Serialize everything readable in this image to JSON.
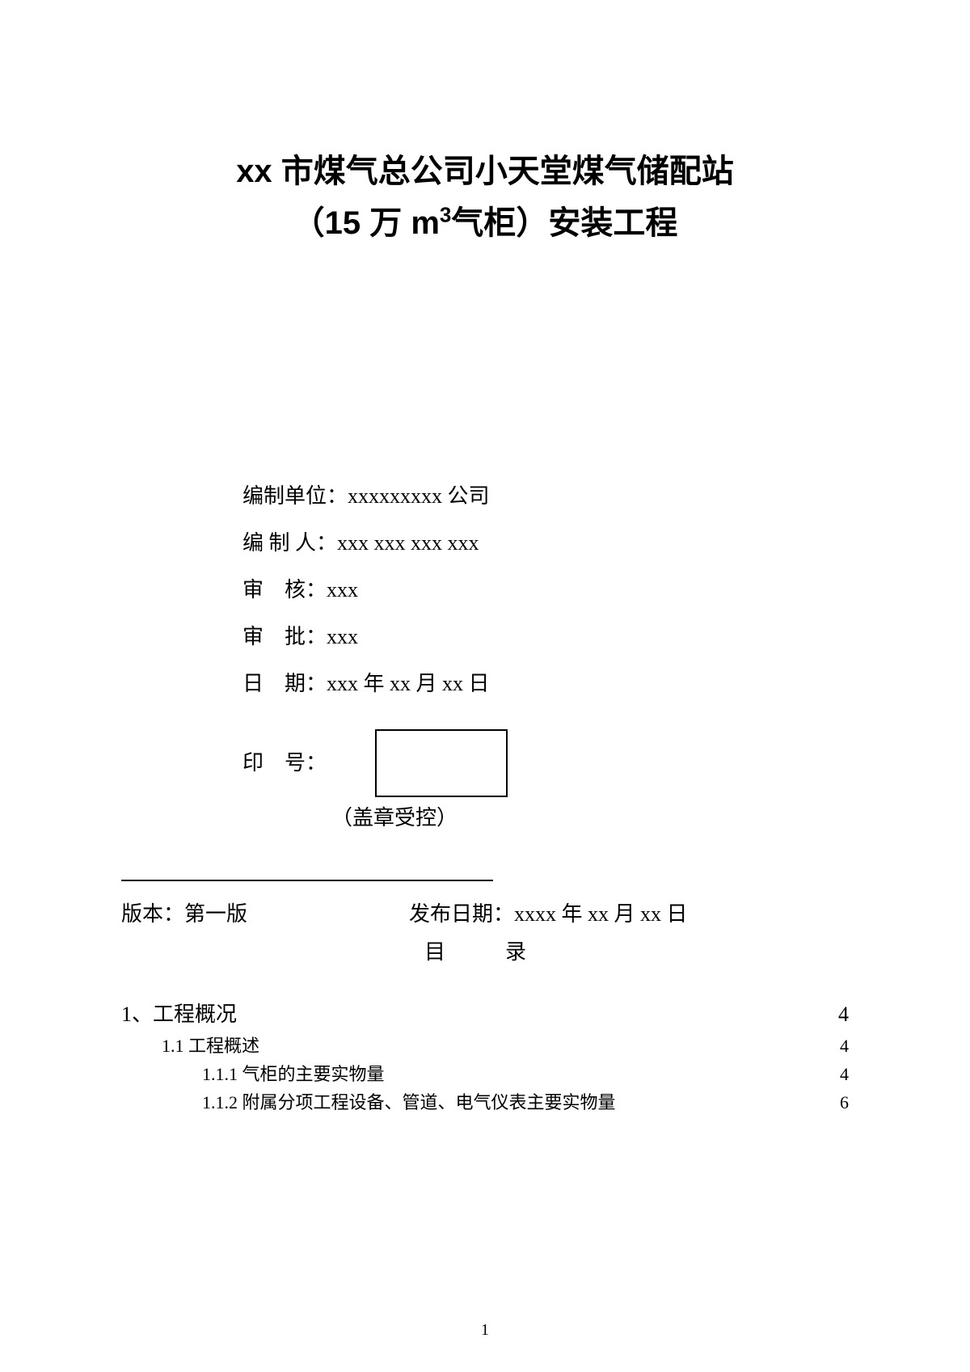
{
  "title": {
    "line1_pre": "xx 市煤气总公司小天堂煤气储配站",
    "line2_pre": "（15 万 m",
    "line2_sup": "3",
    "line2_post": "气柜）安装工程"
  },
  "info": {
    "org_label": "编制单位：",
    "org_value": "xxxxxxxxx 公司",
    "author_label": "编 制 人：",
    "author_value": "xxx xxx xxx xxx",
    "review_label": "审　核：",
    "review_value": "xxx",
    "approve_label": "审　批：",
    "approve_value": "xxx",
    "date_label": "日　期：",
    "date_value": "xxx 年 xx 月 xx 日",
    "seal_label": "印　号：",
    "seal_note": "（盖章受控）"
  },
  "version": {
    "version_label": "版本：第一版",
    "pubdate_label": "发布日期：xxxx 年 xx 月 xx 日"
  },
  "toc_title": "目　录",
  "toc": [
    {
      "level": 0,
      "text": "1、工程概况",
      "page": "4"
    },
    {
      "level": 1,
      "text": "1.1 工程概述",
      "page": "4"
    },
    {
      "level": 2,
      "text": "1.1.1 气柜的主要实物量",
      "page": "4"
    },
    {
      "level": 2,
      "text": "1.1.2 附属分项工程设备、管道、电气仪表主要实物量",
      "page": "6"
    }
  ],
  "page_number": "1",
  "colors": {
    "text": "#000000",
    "background": "#ffffff",
    "border": "#000000"
  }
}
